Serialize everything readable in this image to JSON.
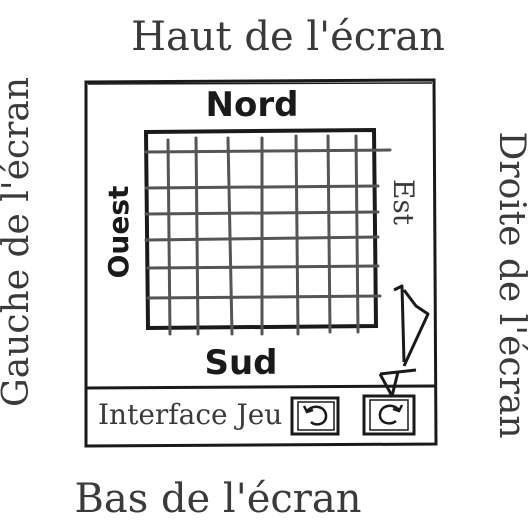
{
  "screen_labels": {
    "top": "Haut de l'écran",
    "bottom": "Bas de l'écran",
    "left": "Gauche de l'écran",
    "right": "Droite de l'écran"
  },
  "map_labels": {
    "north": "Nord",
    "south": "Sud",
    "west": "Ouest",
    "east": "Est"
  },
  "interface": {
    "label": "Interface Jeu",
    "button_1_icon": "rotate-left-icon",
    "button_2_icon": "rotate-right-icon"
  },
  "colors": {
    "ink": "#1a1a1a",
    "pencil": "#3a3a3a",
    "grid": "#555555"
  }
}
